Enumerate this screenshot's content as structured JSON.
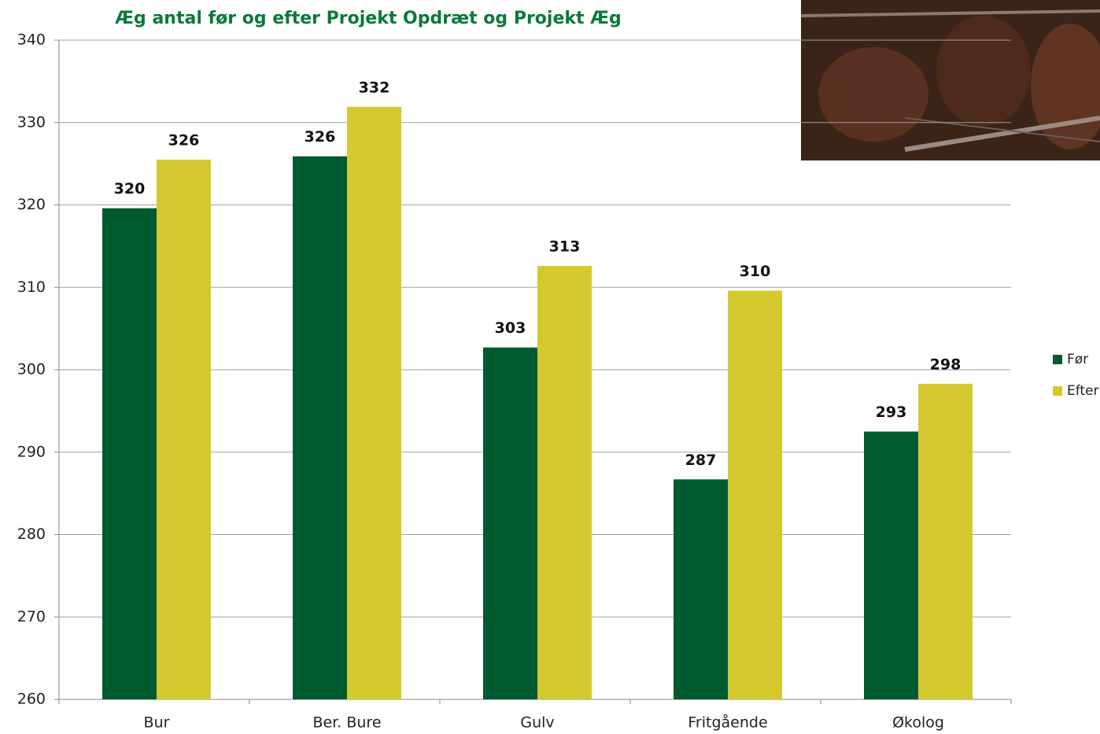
{
  "chart_data": {
    "type": "bar",
    "title": "Æg antal før og efter Projekt Opdræt og Projekt Æg",
    "categories": [
      "Bur",
      "Ber. Bure",
      "Gulv",
      "Fritgående",
      "Økolog"
    ],
    "series": [
      {
        "name": "Før",
        "color": "#005a30",
        "values": [
          319.6,
          325.9,
          302.7,
          286.7,
          292.5
        ],
        "value_labels": [
          "320",
          "326",
          "303",
          "287",
          "293"
        ]
      },
      {
        "name": "Efter",
        "color": "#d4c92e",
        "values": [
          325.5,
          331.9,
          312.6,
          309.6,
          298.3
        ],
        "value_labels": [
          "326",
          "332",
          "313",
          "310",
          "298"
        ]
      }
    ],
    "ylim": [
      260,
      340
    ],
    "yticks": [
      260,
      270,
      280,
      290,
      300,
      310,
      320,
      330,
      340
    ],
    "grid": true,
    "legend": "right"
  }
}
